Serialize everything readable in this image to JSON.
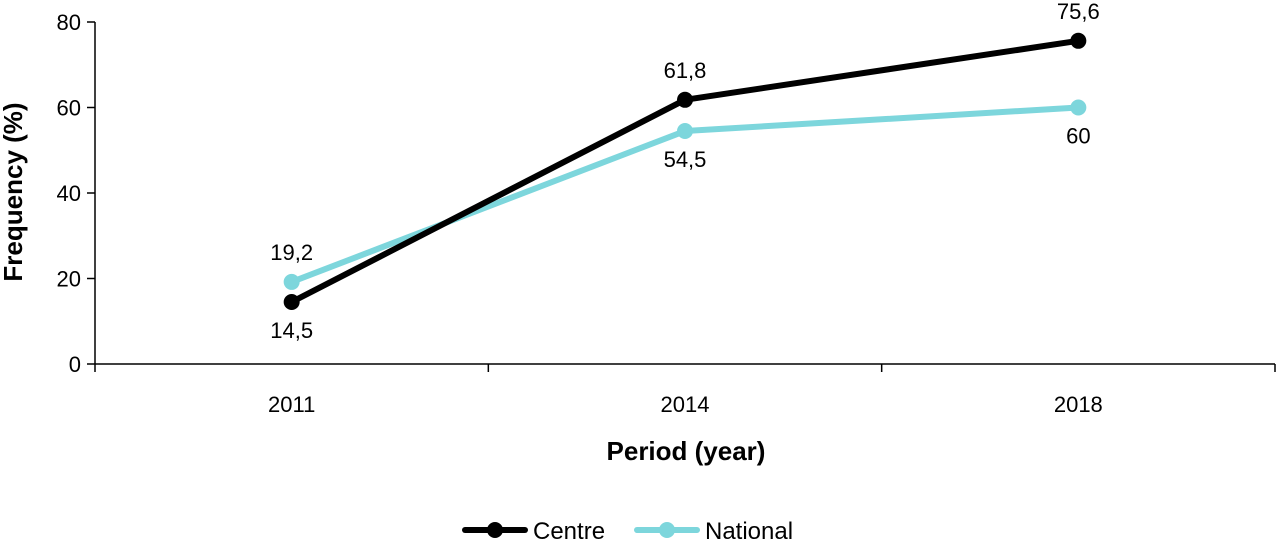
{
  "chart_data": {
    "type": "line",
    "categories": [
      "2011",
      "2014",
      "2018"
    ],
    "series": [
      {
        "name": "Centre",
        "color": "#000000",
        "values": [
          14.5,
          61.8,
          75.6
        ],
        "labels": [
          "14,5",
          "61,8",
          "75,6"
        ],
        "label_positions": [
          "below",
          "above",
          "above"
        ]
      },
      {
        "name": "National",
        "color": "#7dd6dc",
        "values": [
          19.2,
          54.5,
          60
        ],
        "labels": [
          "19,2",
          "54,5",
          "60"
        ],
        "label_positions": [
          "above",
          "below",
          "below"
        ]
      }
    ],
    "xlabel": "Period (year)",
    "ylabel": "Frequency (%)",
    "ylim": [
      0,
      80
    ],
    "yticks": [
      "0",
      "20",
      "40",
      "60",
      "80"
    ],
    "grid": false,
    "legend_position": "bottom"
  }
}
